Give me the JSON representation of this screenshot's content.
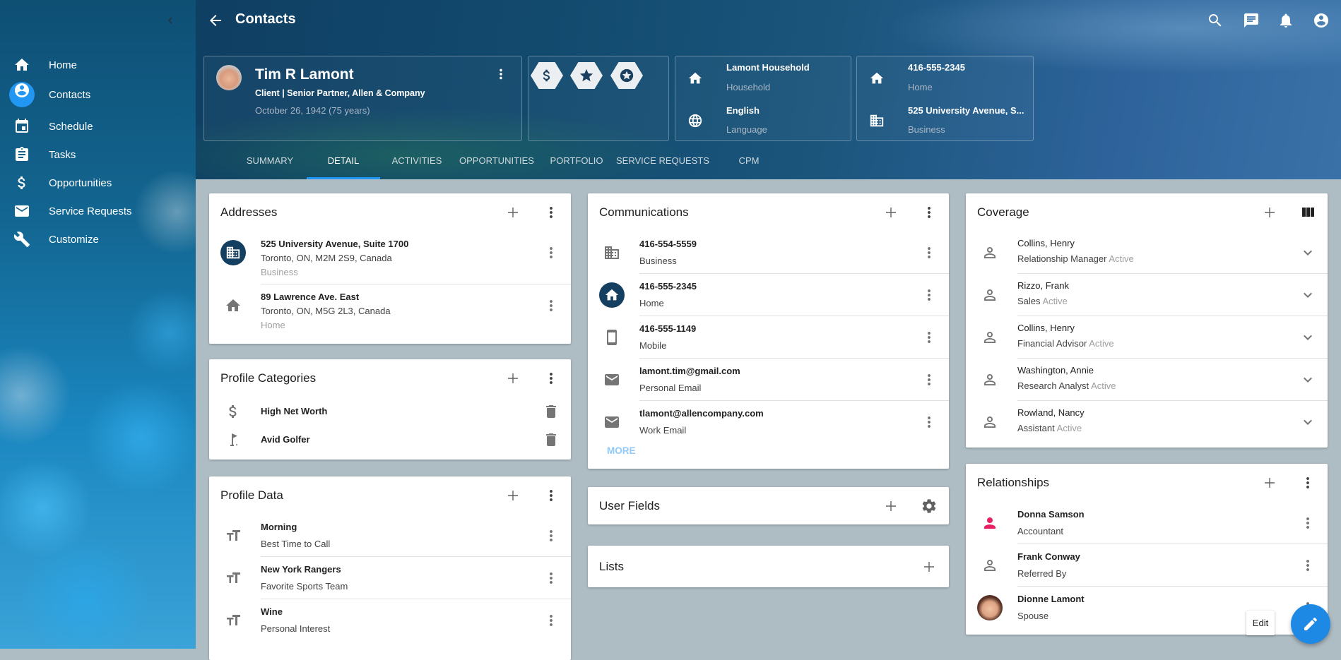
{
  "sidebar": {
    "items": [
      {
        "label": "Home",
        "icon": "home-icon",
        "active": false
      },
      {
        "label": "Contacts",
        "icon": "account-circle-icon",
        "active": true
      },
      {
        "label": "Schedule",
        "icon": "calendar-icon",
        "active": false
      },
      {
        "label": "Tasks",
        "icon": "clipboard-icon",
        "active": false
      },
      {
        "label": "Opportunities",
        "icon": "dollar-icon",
        "active": false
      },
      {
        "label": "Service Requests",
        "icon": "mail-icon",
        "active": false
      },
      {
        "label": "Customize",
        "icon": "wrench-icon",
        "active": false
      }
    ]
  },
  "header": {
    "title": "Contacts",
    "actions": [
      "search-icon",
      "chat-icon",
      "bell-icon",
      "account-circle-icon"
    ]
  },
  "profile": {
    "name": "Tim R Lamont",
    "subtitle": "Client | Senior Partner, Allen & Company",
    "birth": "October 26, 1942 (75 years)",
    "badges": [
      "dollar-icon",
      "star-icon",
      "star-circle-icon"
    ]
  },
  "household": {
    "value": "Lamont Household",
    "label": "Household",
    "lang_value": "English",
    "lang_label": "Language"
  },
  "contact_info": {
    "phone": "416-555-2345",
    "phone_label": "Home",
    "address": "525 University Avenue, S...",
    "address_label": "Business"
  },
  "tabs": [
    {
      "label": "SUMMARY",
      "active": false
    },
    {
      "label": "DETAIL",
      "active": true
    },
    {
      "label": "ACTIVITIES",
      "active": false
    },
    {
      "label": "OPPORTUNITIES",
      "active": false
    },
    {
      "label": "PORTFOLIO",
      "active": false
    },
    {
      "label": "SERVICE REQUESTS",
      "active": false
    },
    {
      "label": "CPM",
      "active": false
    }
  ],
  "addresses": {
    "title": "Addresses",
    "items": [
      {
        "line1": "525 University Avenue, Suite 1700",
        "line2": "Toronto, ON, M2M 2S9, Canada",
        "type": "Business",
        "icon": "business-icon",
        "primary": true
      },
      {
        "line1": "89 Lawrence Ave. East",
        "line2": "Toronto, ON, M5G 2L3, Canada",
        "type": "Home",
        "icon": "home-icon",
        "primary": false
      }
    ]
  },
  "profile_categories": {
    "title": "Profile Categories",
    "items": [
      {
        "label": "High Net Worth",
        "icon": "dollar-icon"
      },
      {
        "label": "Avid Golfer",
        "icon": "golf-icon"
      }
    ]
  },
  "profile_data": {
    "title": "Profile Data",
    "items": [
      {
        "value": "Morning",
        "label": "Best Time to Call"
      },
      {
        "value": "New York Rangers",
        "label": "Favorite Sports Team"
      },
      {
        "value": "Wine",
        "label": "Personal Interest"
      }
    ]
  },
  "communications": {
    "title": "Communications",
    "more_label": "MORE",
    "items": [
      {
        "value": "416-554-5559",
        "label": "Business",
        "icon": "business-icon",
        "primary": false
      },
      {
        "value": "416-555-2345",
        "label": "Home",
        "icon": "home-icon",
        "primary": true
      },
      {
        "value": "416-555-1149",
        "label": "Mobile",
        "icon": "smartphone-icon",
        "primary": false
      },
      {
        "value": "lamont.tim@gmail.com",
        "label": "Personal Email",
        "icon": "mail-icon",
        "primary": false
      },
      {
        "value": "tlamont@allencompany.com",
        "label": "Work Email",
        "icon": "mail-icon",
        "primary": false
      }
    ]
  },
  "user_fields": {
    "title": "User Fields"
  },
  "lists": {
    "title": "Lists"
  },
  "coverage": {
    "title": "Coverage",
    "items": [
      {
        "name": "Collins, Henry",
        "role": "Relationship Manager",
        "status": "Active"
      },
      {
        "name": "Rizzo, Frank",
        "role": "Sales",
        "status": "Active"
      },
      {
        "name": "Collins, Henry",
        "role": "Financial Advisor",
        "status": "Active"
      },
      {
        "name": "Washington, Annie",
        "role": "Research Analyst",
        "status": "Active"
      },
      {
        "name": "Rowland, Nancy",
        "role": "Assistant",
        "status": "Active"
      }
    ]
  },
  "relationships": {
    "title": "Relationships",
    "items": [
      {
        "name": "Donna Samson",
        "role": "Accountant",
        "icon": "person-icon",
        "color": "#e91e63"
      },
      {
        "name": "Frank Conway",
        "role": "Referred By",
        "icon": "person-outline-icon",
        "color": "#757575"
      },
      {
        "name": "Dionne Lamont",
        "role": "Spouse",
        "icon": "avatar-photo",
        "color": ""
      }
    ]
  },
  "fab": {
    "tooltip": "Edit",
    "icon": "pencil-icon"
  },
  "colors": {
    "accent": "#2196f3",
    "primary_dark": "#143f60",
    "content_bg": "#aebcc4",
    "more_link": "#90caf9"
  }
}
